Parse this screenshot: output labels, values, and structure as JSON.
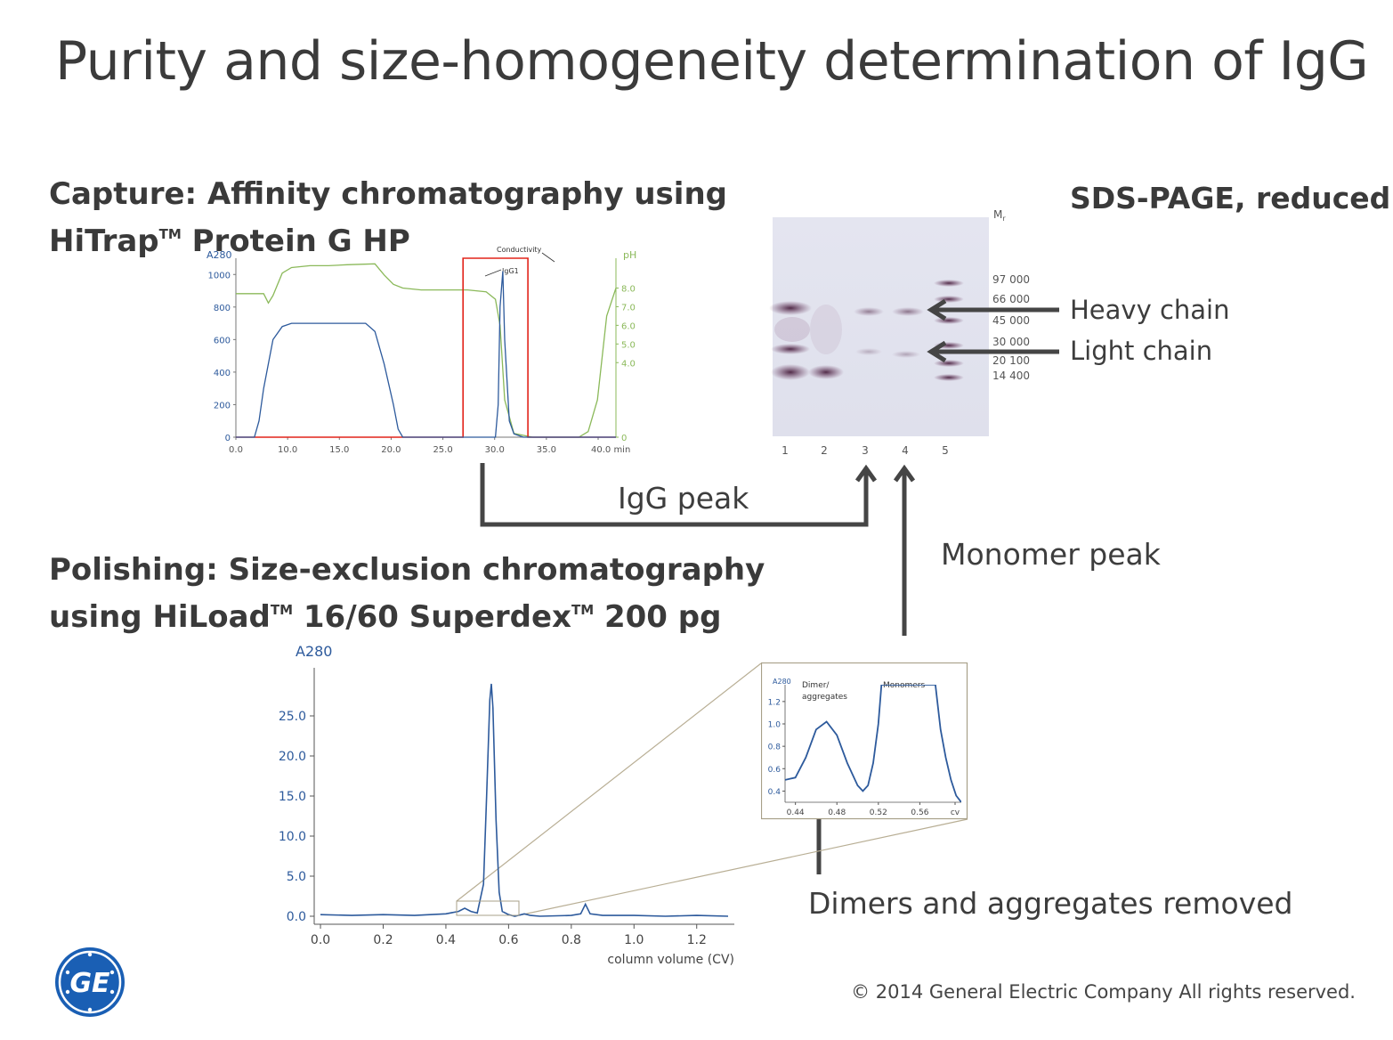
{
  "title": "Purity and size-homogeneity determination of IgG",
  "capture": {
    "line1": "Capture: Affinity chromatography using",
    "line2_a": "HiTrap",
    "line2_tm": "TM",
    "line2_b": " Protein G HP"
  },
  "polishing": {
    "line1": "Polishing: Size-exclusion chromatography",
    "line2_a": "using HiLoad",
    "tm1": "TM",
    "line2_b": " 16/60 Superdex",
    "tm2": "TM",
    "line2_c": " 200 pg"
  },
  "sds": {
    "title": "SDS-PAGE, reduced",
    "mr_label": "Mr",
    "markers": [
      "97 000",
      "66 000",
      "45 000",
      "30 000",
      "20 100",
      "14 400"
    ],
    "lanes": [
      "1",
      "2",
      "3",
      "4",
      "5"
    ],
    "heavy_chain": "Heavy chain",
    "light_chain": "Light chain"
  },
  "labels": {
    "igg_peak": "IgG peak",
    "monomer_peak": "Monomer peak",
    "dimers_removed": "Dimers and aggregates removed"
  },
  "copyright": "© 2014 General  Electric Company  All rights reserved.",
  "logo_text": "GE",
  "colors": {
    "blue": "#2d5a9c",
    "green": "#8bb95a",
    "red": "#e2231a",
    "arrow": "#454545",
    "ge_blue": "#1a5fb4"
  },
  "chart_data": [
    {
      "type": "line",
      "id": "affinity",
      "ylabel_left": "A280",
      "ylabel_right": "pH",
      "xlabel": "min",
      "xlim": [
        0,
        41
      ],
      "ylim_left": [
        0,
        1100
      ],
      "ylim_right": [
        0,
        9.6
      ],
      "xticks": [
        "0.0",
        "10.0",
        "15.0",
        "20.0",
        "25.0",
        "30.0",
        "35.0",
        "40.0 min"
      ],
      "yticks_left": [
        "1000",
        "800",
        "600",
        "400",
        "200",
        "0"
      ],
      "yticks_right": [
        "8.0",
        "7.0",
        "6.0",
        "5.0",
        "4.0",
        "0"
      ],
      "annotations": [
        "Conductivity",
        "IgG1"
      ],
      "series": [
        {
          "name": "A280",
          "x": [
            0,
            1,
            2,
            2.5,
            3,
            4,
            5,
            6,
            8,
            10,
            12,
            14,
            15,
            16,
            17,
            17.5,
            18,
            20,
            25,
            27,
            28,
            28.3,
            28.5,
            28.8,
            29,
            29.5,
            30,
            31,
            35,
            40,
            41
          ],
          "values": [
            0,
            0,
            0,
            100,
            300,
            600,
            680,
            700,
            700,
            700,
            700,
            700,
            650,
            450,
            200,
            50,
            0,
            0,
            0,
            0,
            0,
            200,
            800,
            1020,
            600,
            100,
            20,
            0,
            0,
            0,
            0
          ]
        },
        {
          "name": "pH",
          "x": [
            0,
            3,
            3.5,
            4,
            5,
            6,
            8,
            10,
            12,
            15,
            16,
            17,
            18,
            20,
            25,
            27,
            28,
            28.5,
            29,
            30,
            32,
            35,
            37,
            38,
            39,
            40,
            41
          ],
          "values": [
            7.7,
            7.7,
            7.2,
            7.6,
            8.8,
            9.1,
            9.2,
            9.2,
            9.25,
            9.3,
            8.7,
            8.2,
            8.0,
            7.9,
            7.9,
            7.8,
            7.4,
            6.0,
            2.0,
            0.2,
            0,
            0,
            0,
            0.3,
            2.0,
            6.5,
            8.0
          ]
        },
        {
          "name": "Conductivity",
          "x": [
            0,
            24.5,
            24.5,
            31.5,
            31.5,
            41
          ],
          "values": [
            0,
            0,
            1100,
            1100,
            0,
            0
          ]
        }
      ]
    },
    {
      "type": "line",
      "id": "sec",
      "ylabel": "A280",
      "xlabel": "column volume (CV)",
      "xlim": [
        -0.02,
        1.32
      ],
      "ylim": [
        -1,
        31
      ],
      "xticks": [
        "0.0",
        "0.2",
        "0.4",
        "0.6",
        "0.8",
        "1.0",
        "1.2"
      ],
      "yticks": [
        "25.0",
        "20.0",
        "15.0",
        "10.0",
        "5.0",
        "0.0"
      ],
      "series": [
        {
          "name": "A280",
          "x": [
            0,
            0.1,
            0.2,
            0.3,
            0.4,
            0.44,
            0.46,
            0.48,
            0.5,
            0.52,
            0.53,
            0.54,
            0.545,
            0.55,
            0.56,
            0.57,
            0.58,
            0.6,
            0.62,
            0.65,
            0.67,
            0.7,
            0.8,
            0.83,
            0.845,
            0.86,
            0.9,
            1.0,
            1.1,
            1.2,
            1.3
          ],
          "values": [
            0.2,
            0.1,
            0.2,
            0.1,
            0.3,
            0.6,
            1.0,
            0.6,
            0.4,
            4.0,
            15.0,
            27.0,
            29.0,
            26.0,
            12.0,
            3.0,
            0.6,
            0.2,
            0,
            0.3,
            0.1,
            0,
            0.1,
            0.3,
            1.5,
            0.3,
            0.1,
            0.1,
            0,
            0.1,
            0
          ]
        }
      ]
    },
    {
      "type": "line",
      "id": "inset",
      "ylabel": "A280",
      "xlabel": "cv",
      "xlim": [
        0.43,
        0.6
      ],
      "ylim": [
        0.3,
        1.35
      ],
      "xticks": [
        "0.44",
        "0.48",
        "0.52",
        "0.56",
        "cv"
      ],
      "yticks": [
        "1.2",
        "1.0",
        "0.8",
        "0.6",
        "0.4"
      ],
      "annotations": [
        "Dimer/",
        "aggregates",
        "Monomers"
      ],
      "series": [
        {
          "name": "A280",
          "x": [
            0.43,
            0.44,
            0.45,
            0.46,
            0.47,
            0.48,
            0.49,
            0.5,
            0.505,
            0.51,
            0.515,
            0.52,
            0.523,
            0.525,
            0.575,
            0.58,
            0.585,
            0.59,
            0.595,
            0.6
          ],
          "values": [
            0.5,
            0.52,
            0.7,
            0.95,
            1.02,
            0.9,
            0.65,
            0.45,
            0.4,
            0.45,
            0.65,
            1.0,
            1.35,
            1.35,
            1.35,
            0.95,
            0.7,
            0.5,
            0.36,
            0.3
          ]
        }
      ]
    }
  ]
}
